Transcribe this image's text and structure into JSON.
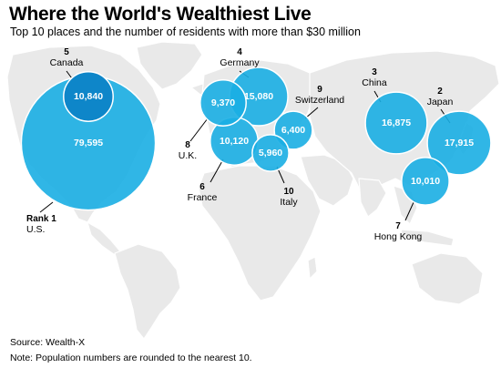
{
  "header": {
    "title": "Where the World's Wealthiest Live",
    "subtitle": "Top 10 places and the number of residents with more than $30 million"
  },
  "footer": {
    "source": "Source: Wealth-X",
    "note": "Note: Population numbers are rounded to the nearest 10."
  },
  "colors": {
    "bubble": "#19aee3",
    "bubble_dark": "#0e86c9",
    "land": "#e9e9e9",
    "leader": "#000000"
  },
  "chart_data": {
    "type": "bubble-map",
    "title": "Where the World's Wealthiest Live",
    "subtitle": "Top 10 places and the number of residents with more than $30 million",
    "series": [
      {
        "rank": 1,
        "rank_label": "Rank 1",
        "name": "U.S.",
        "value": 79595,
        "value_label": "79,595"
      },
      {
        "rank": 2,
        "rank_label": "2",
        "name": "Japan",
        "value": 17915,
        "value_label": "17,915"
      },
      {
        "rank": 3,
        "rank_label": "3",
        "name": "China",
        "value": 16875,
        "value_label": "16,875"
      },
      {
        "rank": 4,
        "rank_label": "4",
        "name": "Germany",
        "value": 15080,
        "value_label": "15,080"
      },
      {
        "rank": 5,
        "rank_label": "5",
        "name": "Canada",
        "value": 10840,
        "value_label": "10,840"
      },
      {
        "rank": 6,
        "rank_label": "6",
        "name": "France",
        "value": 10120,
        "value_label": "10,120"
      },
      {
        "rank": 7,
        "rank_label": "7",
        "name": "Hong Kong",
        "value": 10010,
        "value_label": "10,010"
      },
      {
        "rank": 8,
        "rank_label": "8",
        "name": "U.K.",
        "value": 9370,
        "value_label": "9,370"
      },
      {
        "rank": 9,
        "rank_label": "9",
        "name": "Switzerland",
        "value": 6400,
        "value_label": "6,400"
      },
      {
        "rank": 10,
        "rank_label": "10",
        "name": "Italy",
        "value": 5960,
        "value_label": "5,960"
      }
    ]
  }
}
